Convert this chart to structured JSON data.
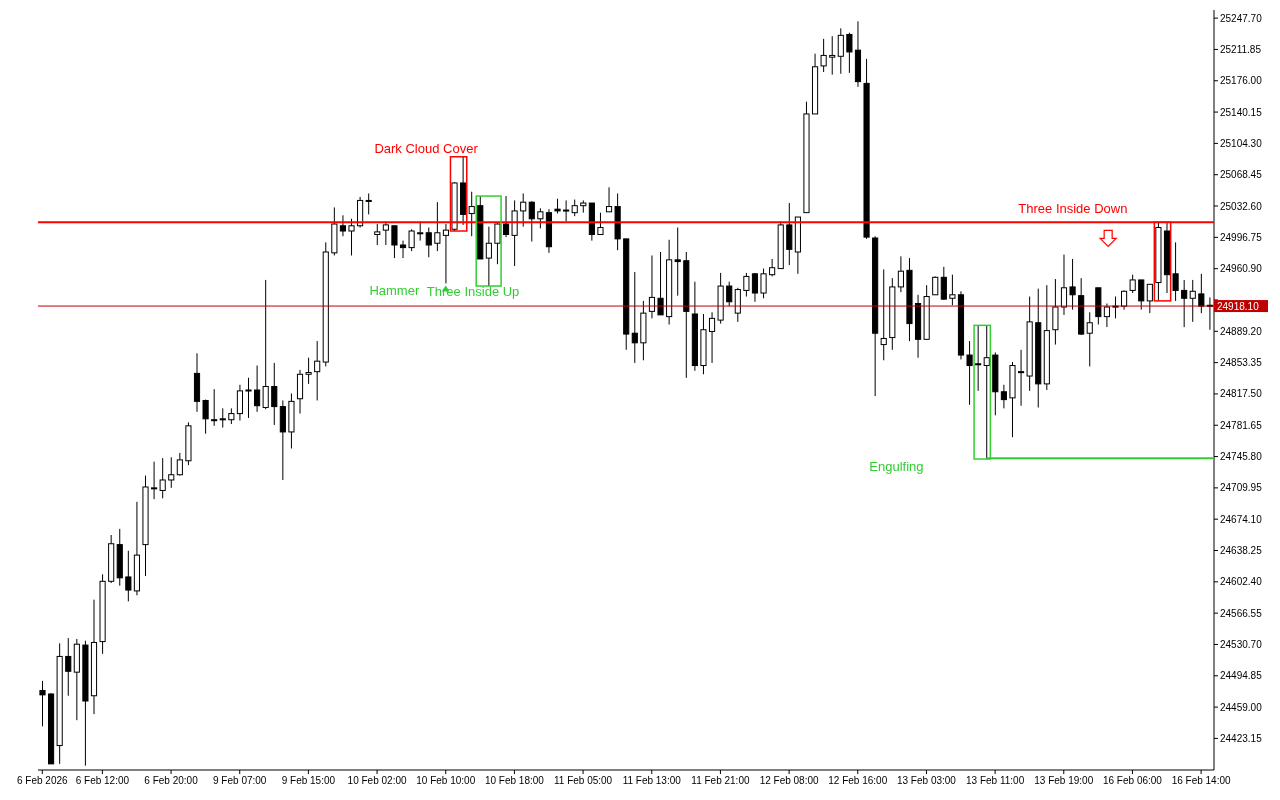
{
  "chart_data": {
    "type": "candlestick",
    "color": "#000000",
    "categories": [
      "6 Feb 2026",
      null,
      null,
      null,
      null,
      null,
      null,
      "6 Feb 12:00",
      null,
      null,
      null,
      null,
      null,
      null,
      null,
      "6 Feb 20:00",
      null,
      null,
      null,
      null,
      null,
      null,
      null,
      "9 Feb 07:00",
      null,
      null,
      null,
      null,
      null,
      null,
      null,
      "9 Feb 15:00",
      null,
      null,
      null,
      null,
      null,
      null,
      null,
      "10 Feb 02:00",
      null,
      null,
      null,
      null,
      null,
      null,
      null,
      "10 Feb 10:00",
      null,
      null,
      null,
      null,
      null,
      null,
      null,
      "10 Feb 18:00",
      null,
      null,
      null,
      null,
      null,
      null,
      null,
      "11 Feb 05:00",
      null,
      null,
      null,
      null,
      null,
      null,
      null,
      "11 Feb 13:00",
      null,
      null,
      null,
      null,
      null,
      null,
      null,
      "11 Feb 21:00",
      null,
      null,
      null,
      null,
      null,
      null,
      null,
      "12 Feb 08:00",
      null,
      null,
      null,
      null,
      null,
      null,
      null,
      "12 Feb 16:00",
      null,
      null,
      null,
      null,
      null,
      null,
      null,
      "13 Feb 03:00",
      null,
      null,
      null,
      null,
      null,
      null,
      null,
      "13 Feb 11:00",
      null,
      null,
      null,
      null,
      null,
      null,
      null,
      "13 Feb 19:00",
      null,
      null,
      null,
      null,
      null,
      null,
      null,
      "16 Feb 06:00",
      null,
      null,
      null,
      null,
      null,
      null,
      null,
      "16 Feb 14:00",
      null
    ],
    "ohlc": [
      [
        24478,
        24489,
        24437,
        24473
      ],
      [
        24474,
        24475,
        24394,
        24394
      ],
      [
        24415,
        24532,
        24394,
        24517
      ],
      [
        24517,
        24538,
        24472,
        24500
      ],
      [
        24499,
        24537,
        24444,
        24531
      ],
      [
        24530,
        24535,
        24392,
        24466
      ],
      [
        24472,
        24582,
        24451,
        24533
      ],
      [
        24534,
        24611,
        24520,
        24603
      ],
      [
        24603,
        24656,
        24601,
        24646
      ],
      [
        24645,
        24663,
        24598,
        24607
      ],
      [
        24608,
        24638,
        24580,
        24593
      ],
      [
        24592,
        24694,
        24587,
        24633
      ],
      [
        24645,
        24724,
        24609,
        24711
      ],
      [
        24709,
        24740,
        24697,
        24710
      ],
      [
        24707,
        24744,
        24698,
        24719
      ],
      [
        24719,
        24745,
        24710,
        24725
      ],
      [
        24725,
        24750,
        24724,
        24742
      ],
      [
        24741,
        24785,
        24736,
        24781
      ],
      [
        24841,
        24864,
        24797,
        24809
      ],
      [
        24810,
        24811,
        24772,
        24789
      ],
      [
        24788,
        24823,
        24781,
        24787
      ],
      [
        24789,
        24801,
        24779,
        24788
      ],
      [
        24788,
        24801,
        24783,
        24795
      ],
      [
        24795,
        24828,
        24787,
        24821
      ],
      [
        24822,
        24836,
        24790,
        24822
      ],
      [
        24822,
        24850,
        24797,
        24804
      ],
      [
        24802,
        24948,
        24800,
        24826
      ],
      [
        24826,
        24853,
        24782,
        24803
      ],
      [
        24803,
        24810,
        24719,
        24774
      ],
      [
        24774,
        24818,
        24755,
        24809
      ],
      [
        24812,
        24845,
        24795,
        24840
      ],
      [
        24840,
        24859,
        24829,
        24842
      ],
      [
        24843,
        24878,
        24810,
        24855
      ],
      [
        24854,
        24991,
        24849,
        24980
      ],
      [
        24979,
        25031,
        24976,
        25012
      ],
      [
        25010,
        25022,
        24998,
        25004
      ],
      [
        25004,
        25018,
        24976,
        25010
      ],
      [
        25010,
        25043,
        25008,
        25039
      ],
      [
        25039,
        25047,
        25023,
        25038
      ],
      [
        25000,
        25012,
        24988,
        25003
      ],
      [
        25005,
        25015,
        24988,
        25011
      ],
      [
        25010,
        25010,
        24973,
        24988
      ],
      [
        24988,
        24993,
        24973,
        24985
      ],
      [
        24985,
        25006,
        24981,
        25004
      ],
      [
        25002,
        25015,
        24993,
        25002
      ],
      [
        25002,
        25008,
        24974,
        24988
      ],
      [
        24990,
        25037,
        24981,
        25002
      ],
      [
        24999,
        25012,
        24944,
        25005
      ],
      [
        25006,
        25060,
        25004,
        25059
      ],
      [
        25059,
        25089,
        25011,
        25023
      ],
      [
        25024,
        25049,
        24998,
        25032
      ],
      [
        25033,
        25044,
        24972,
        24972
      ],
      [
        24973,
        25009,
        24941,
        24990
      ],
      [
        24990,
        25013,
        24966,
        25012
      ],
      [
        25012,
        25044,
        24997,
        25000
      ],
      [
        24999,
        25039,
        24964,
        25027
      ],
      [
        25027,
        25047,
        25009,
        25037
      ],
      [
        25037,
        25038,
        24992,
        25018
      ],
      [
        25018,
        25030,
        25007,
        25026
      ],
      [
        25025,
        25029,
        24979,
        24986
      ],
      [
        25029,
        25041,
        25024,
        25027
      ],
      [
        25028,
        25039,
        25015,
        25027
      ],
      [
        25025,
        25040,
        25021,
        25033
      ],
      [
        25033,
        25039,
        25025,
        25036
      ],
      [
        25036,
        25036,
        24993,
        25000
      ],
      [
        25000,
        25025,
        25000,
        25008
      ],
      [
        25026,
        25054,
        25026,
        25032
      ],
      [
        25032,
        25047,
        24982,
        24995
      ],
      [
        24995,
        24995,
        24868,
        24886
      ],
      [
        24887,
        24957,
        24853,
        24876
      ],
      [
        24876,
        24924,
        24856,
        24910
      ],
      [
        24912,
        24976,
        24904,
        24928
      ],
      [
        24927,
        24980,
        24908,
        24908
      ],
      [
        24906,
        24994,
        24897,
        24971
      ],
      [
        24971,
        25008,
        24930,
        24969
      ],
      [
        24970,
        24980,
        24836,
        24912
      ],
      [
        24909,
        24946,
        24844,
        24850
      ],
      [
        24850,
        24909,
        24840,
        24891
      ],
      [
        24889,
        24911,
        24853,
        24904
      ],
      [
        24902,
        24956,
        24898,
        24941
      ],
      [
        24941,
        24946,
        24918,
        24923
      ],
      [
        24910,
        24939,
        24900,
        24937
      ],
      [
        24936,
        24956,
        24929,
        24952
      ],
      [
        24955,
        24956,
        24923,
        24933
      ],
      [
        24933,
        24961,
        24927,
        24955
      ],
      [
        24954,
        24972,
        24952,
        24962
      ],
      [
        24961,
        25015,
        24961,
        25011
      ],
      [
        25011,
        25036,
        24965,
        24983
      ],
      [
        24980,
        25020,
        24955,
        25020
      ],
      [
        25025,
        25152,
        25025,
        25138
      ],
      [
        25138,
        25207,
        25138,
        25192
      ],
      [
        25193,
        25224,
        25186,
        25205
      ],
      [
        25203,
        25227,
        25183,
        25205
      ],
      [
        25204,
        25236,
        25184,
        25228
      ],
      [
        25229,
        25231,
        25185,
        25209
      ],
      [
        25211,
        25244,
        25169,
        25175
      ],
      [
        25173,
        25201,
        24995,
        24997
      ],
      [
        24996,
        24998,
        24815,
        24887
      ],
      [
        24874,
        24960,
        24856,
        24881
      ],
      [
        24882,
        24950,
        24868,
        24940
      ],
      [
        24940,
        24975,
        24934,
        24958
      ],
      [
        24959,
        24973,
        24878,
        24898
      ],
      [
        24921,
        24931,
        24859,
        24880
      ],
      [
        24880,
        24942,
        24880,
        24929
      ],
      [
        24931,
        24952,
        24931,
        24951
      ],
      [
        24951,
        24963,
        24925,
        24926
      ],
      [
        24927,
        24954,
        24919,
        24931
      ],
      [
        24931,
        24935,
        24857,
        24862
      ],
      [
        24862,
        24878,
        24805,
        24850
      ],
      [
        24852,
        24896,
        24821,
        24851
      ],
      [
        24850,
        24896,
        24743,
        24859
      ],
      [
        24862,
        24865,
        24793,
        24820
      ],
      [
        24820,
        24828,
        24801,
        24811
      ],
      [
        24813,
        24854,
        24768,
        24850
      ],
      [
        24843,
        24868,
        24804,
        24842
      ],
      [
        24838,
        24929,
        24821,
        24900
      ],
      [
        24899,
        24938,
        24802,
        24829
      ],
      [
        24829,
        24942,
        24822,
        24890
      ],
      [
        24891,
        24949,
        24874,
        24917
      ],
      [
        24917,
        24977,
        24908,
        24939
      ],
      [
        24940,
        24972,
        24914,
        24931
      ],
      [
        24930,
        24950,
        24885,
        24886
      ],
      [
        24887,
        24911,
        24849,
        24899
      ],
      [
        24939,
        24939,
        24897,
        24906
      ],
      [
        24906,
        24921,
        24894,
        24917
      ],
      [
        24917,
        24929,
        24904,
        24918
      ],
      [
        24918,
        24936,
        24914,
        24935
      ],
      [
        24936,
        24954,
        24933,
        24948
      ],
      [
        24948,
        24948,
        24914,
        24924
      ],
      [
        24924,
        24943,
        24910,
        24943
      ],
      [
        24945,
        25014,
        24924,
        25008
      ],
      [
        25004,
        25014,
        24933,
        24954
      ],
      [
        24955,
        24991,
        24924,
        24936
      ],
      [
        24936,
        24948,
        24894,
        24927
      ],
      [
        24927,
        24948,
        24900,
        24935
      ],
      [
        24932,
        24955,
        24910,
        24918
      ],
      [
        24919,
        24928,
        24891,
        24918
      ]
    ],
    "ylim": [
      24387,
      25257
    ],
    "yticks": [
      {
        "value": 25247.7,
        "label": "25247.70"
      },
      25211.85,
      {
        "value": 25176,
        "label": "25176.00"
      },
      25140.15,
      {
        "value": 25104.3,
        "label": "25104.30"
      },
      25068.45,
      {
        "value": 25032.6,
        "label": "25032.60"
      },
      24996.75,
      {
        "value": 24960.9,
        "label": "24960.90"
      },
      {
        "value": 24925.05,
        "label": null
      },
      {
        "value": 24889.2,
        "label": "24889.20"
      },
      24853.35,
      {
        "value": 24817.5,
        "label": "24817.50"
      },
      24781.65,
      {
        "value": 24745.8,
        "label": "24745.80"
      },
      24709.95,
      {
        "value": 24674.1,
        "label": "24674.10"
      },
      24638.25,
      {
        "value": 24602.4,
        "label": "24602.40"
      },
      24566.55,
      {
        "value": 24530.7,
        "label": "24530.70"
      },
      24494.85,
      {
        "value": 24459,
        "label": "24459.00"
      },
      24423.15
    ],
    "ref_lines": [
      {
        "axis": "y",
        "value": 24918.1,
        "label": "24918.10",
        "color": "#c00000"
      },
      {
        "axis": "y",
        "value": 25014,
        "color": "#ff0000"
      },
      {
        "axis": "y",
        "value": 24744,
        "color": "#32cd32"
      }
    ],
    "annotations": [
      "Dark Cloud Cover",
      "Hammer",
      "Three Inside Up",
      "Three Inside Down",
      "Engulfing"
    ]
  }
}
